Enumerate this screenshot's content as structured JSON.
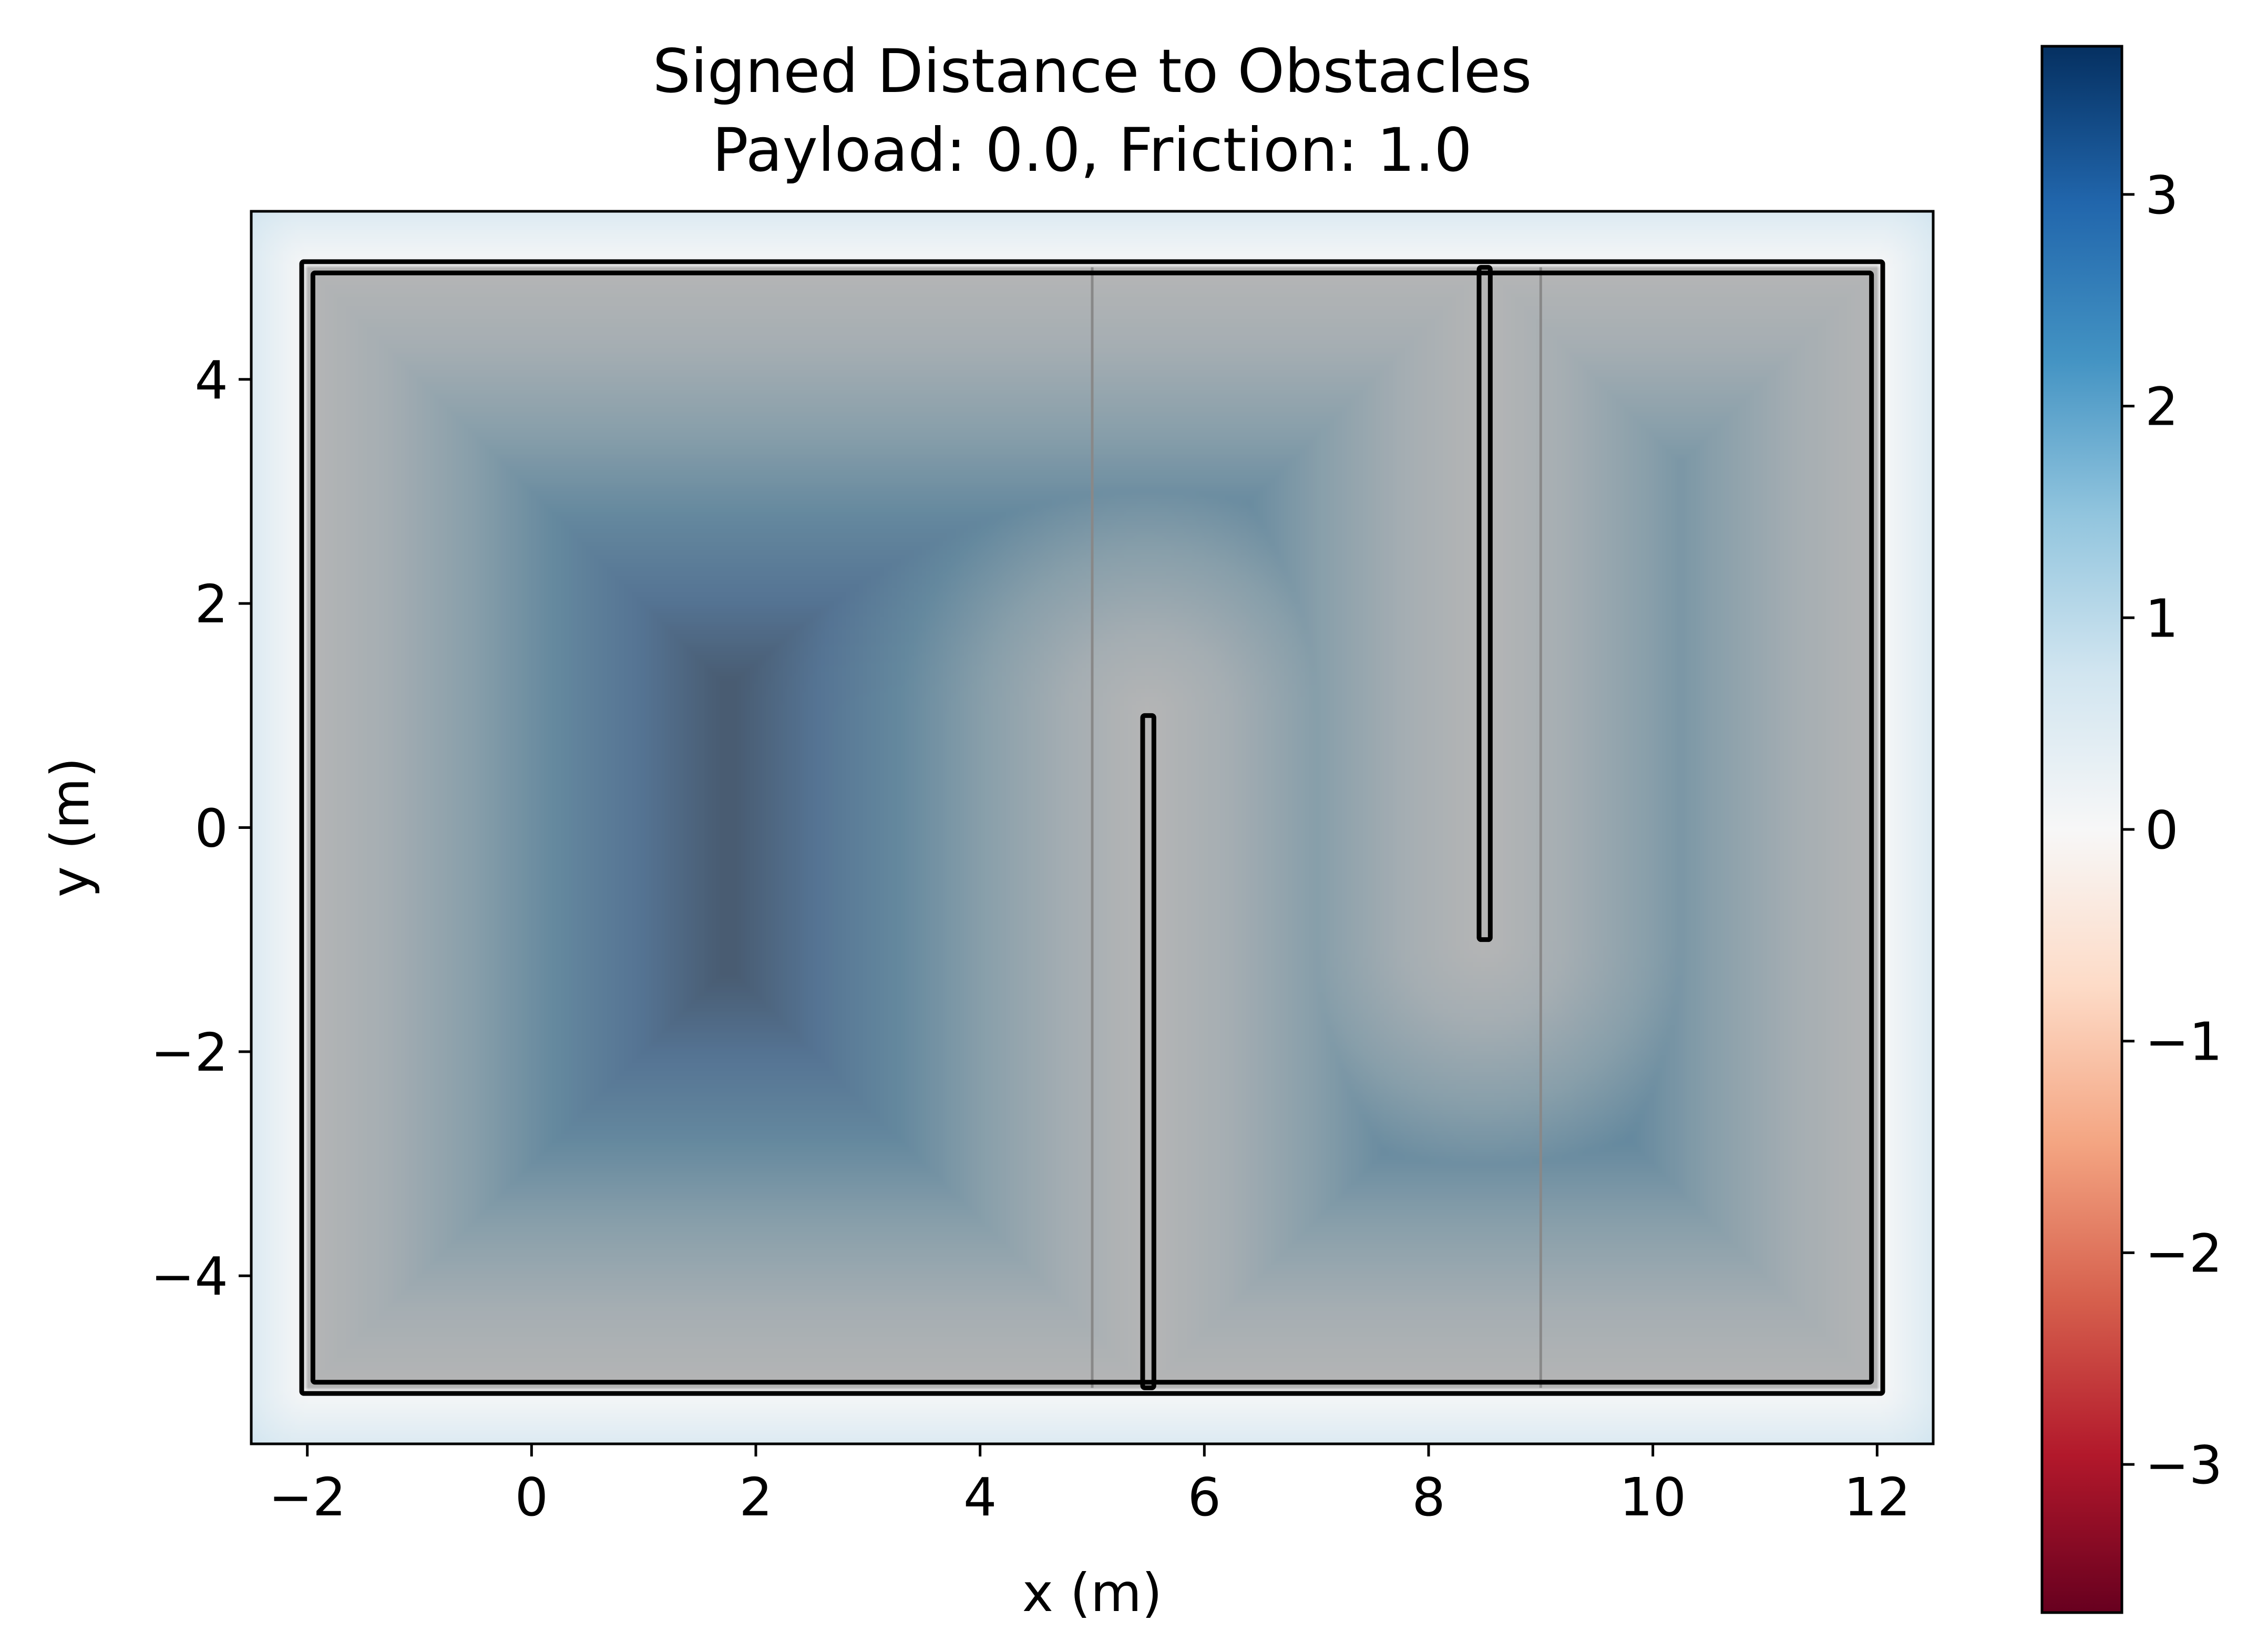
{
  "chart_data": {
    "type": "heatmap",
    "title": "Signed Distance to Obstacles",
    "subtitle": "Payload: 0.0, Friction: 1.0",
    "xlabel": "x (m)",
    "ylabel": "y (m)",
    "xlim": [
      -2.5,
      12.5
    ],
    "ylim": [
      -5.5,
      5.5
    ],
    "x_ticks": [
      -2,
      0,
      2,
      4,
      6,
      8,
      10,
      12
    ],
    "x_tick_labels": [
      "−2",
      "0",
      "2",
      "4",
      "6",
      "8",
      "10",
      "12"
    ],
    "y_ticks": [
      -4,
      -2,
      0,
      2,
      4
    ],
    "y_tick_labels": [
      "−4",
      "−2",
      "0",
      "2",
      "4"
    ],
    "grid": false,
    "colormap": "RdBu",
    "colorbar": {
      "vmin": -3.7,
      "vmax": 3.7,
      "ticks": [
        -3,
        -2,
        -1,
        0,
        1,
        2,
        3
      ],
      "tick_labels": [
        "−3",
        "−2",
        "−1",
        "0",
        "1",
        "2",
        "3"
      ],
      "colors": [
        "#67001f",
        "#b2182b",
        "#d6604d",
        "#f4a582",
        "#fddbc7",
        "#f7f7f7",
        "#d1e5f0",
        "#92c5de",
        "#4393c3",
        "#2166ac",
        "#053061"
      ]
    },
    "free_space_overlay": {
      "color": "#808080",
      "opacity": 0.55
    },
    "obstacles": {
      "boundary": {
        "x_min": -2,
        "x_max": 12,
        "y_min": -5,
        "y_max": 5
      },
      "walls": [
        {
          "x": 5.5,
          "y_from": -5,
          "y_to": 1
        },
        {
          "x": 8.5,
          "y_from": -1,
          "y_to": 5
        }
      ]
    },
    "reference_lines": [
      {
        "x": 5,
        "color": "#888888"
      },
      {
        "x": 9,
        "color": "#888888"
      }
    ]
  }
}
